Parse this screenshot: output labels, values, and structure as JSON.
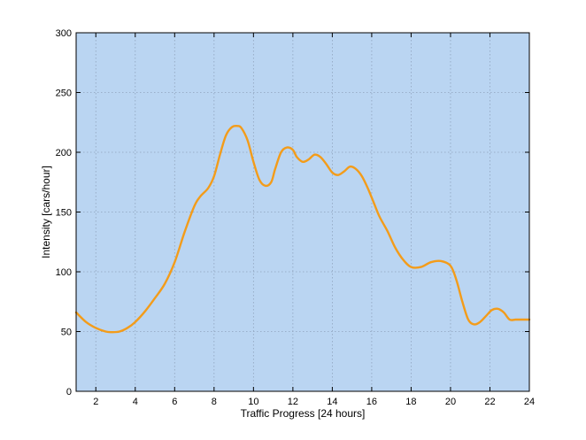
{
  "chart_data": {
    "type": "line",
    "title": "",
    "xlabel": "Traffic Progress [24 hours]",
    "ylabel": "Intensity [cars/hour]",
    "xlim": [
      1,
      24
    ],
    "ylim": [
      0,
      300
    ],
    "x_ticks": [
      2,
      4,
      6,
      8,
      10,
      12,
      14,
      16,
      18,
      20,
      22,
      24
    ],
    "y_ticks": [
      0,
      50,
      100,
      150,
      200,
      250,
      300
    ],
    "grid": true,
    "legend": "none",
    "colors": {
      "plot_background": "#bad5f2",
      "line": "#f39c1a",
      "grid": "#8fa3bd"
    },
    "series": [
      {
        "x": [
          1,
          1.5,
          2,
          2.5,
          2.8,
          3.2,
          3.6,
          4,
          4.5,
          5,
          5.5,
          6,
          6.5,
          7,
          7.3,
          7.7,
          8,
          8.3,
          8.6,
          8.9,
          9.2,
          9.4,
          9.7,
          10,
          10.3,
          10.6,
          10.9,
          11.1,
          11.4,
          11.7,
          12,
          12.2,
          12.5,
          12.8,
          13.1,
          13.4,
          13.7,
          14,
          14.3,
          14.6,
          14.9,
          15.2,
          15.5,
          15.8,
          16.1,
          16.4,
          16.8,
          17.2,
          17.6,
          18,
          18.5,
          19,
          19.5,
          20,
          20.3,
          20.6,
          20.9,
          21.2,
          21.5,
          21.8,
          22.1,
          22.4,
          22.7,
          23,
          23.3,
          23.6,
          23.9,
          24
        ],
        "y": [
          66,
          58,
          53,
          50,
          49.5,
          50,
          53,
          58,
          67,
          78,
          90,
          108,
          133,
          155,
          163,
          170,
          180,
          198,
          214,
          221,
          222,
          220,
          210,
          192,
          177,
          172,
          175,
          186,
          200,
          204,
          202,
          196,
          192,
          194,
          198,
          196,
          190,
          183,
          181,
          184,
          188,
          186,
          180,
          170,
          158,
          146,
          134,
          120,
          110,
          104,
          104,
          108,
          109,
          105,
          93,
          75,
          60,
          56,
          58,
          63,
          68,
          69,
          66,
          60,
          60,
          60,
          60,
          60
        ]
      }
    ]
  }
}
